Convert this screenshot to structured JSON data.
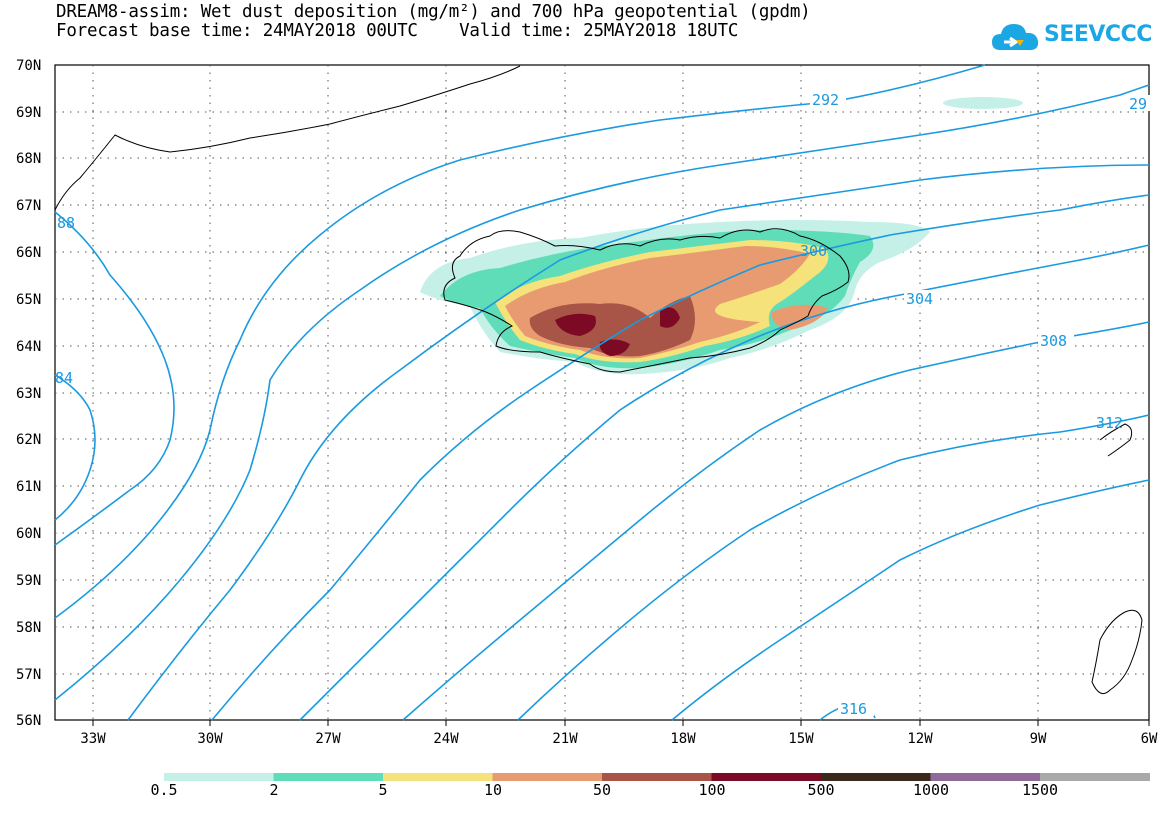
{
  "title": {
    "line1": "DREAM8-assim: Wet dust deposition (mg/m²) and 700 hPa geopotential (gpdm)",
    "line2": "Forecast base time: 24MAY2018 00UTC    Valid time: 25MAY2018 18UTC"
  },
  "logo": {
    "text": "SEEVCCC",
    "icon": "cloud-icon"
  },
  "axes": {
    "lat_labels": [
      "70N",
      "69N",
      "68N",
      "67N",
      "66N",
      "65N",
      "64N",
      "63N",
      "62N",
      "61N",
      "60N",
      "59N",
      "58N",
      "57N",
      "56N"
    ],
    "lon_labels": [
      "33W",
      "30W",
      "27W",
      "24W",
      "21W",
      "18W",
      "15W",
      "12W",
      "9W",
      "6W"
    ]
  },
  "contour_labels": [
    "292",
    "29",
    "300",
    "304",
    "308",
    "312",
    "316",
    "88",
    "84"
  ],
  "legend": {
    "labels": [
      "0.5",
      "2",
      "5",
      "10",
      "50",
      "100",
      "500",
      "1000",
      "1500"
    ],
    "colors": [
      "#c4f0e8",
      "#5fdcb8",
      "#f6e27a",
      "#e89b70",
      "#a85547",
      "#7d0a25",
      "#3b2a1c",
      "#8f6a9a",
      "#a9a9a9"
    ]
  },
  "colors": {
    "contour": "#1a9ae0",
    "grid": "#555555"
  }
}
